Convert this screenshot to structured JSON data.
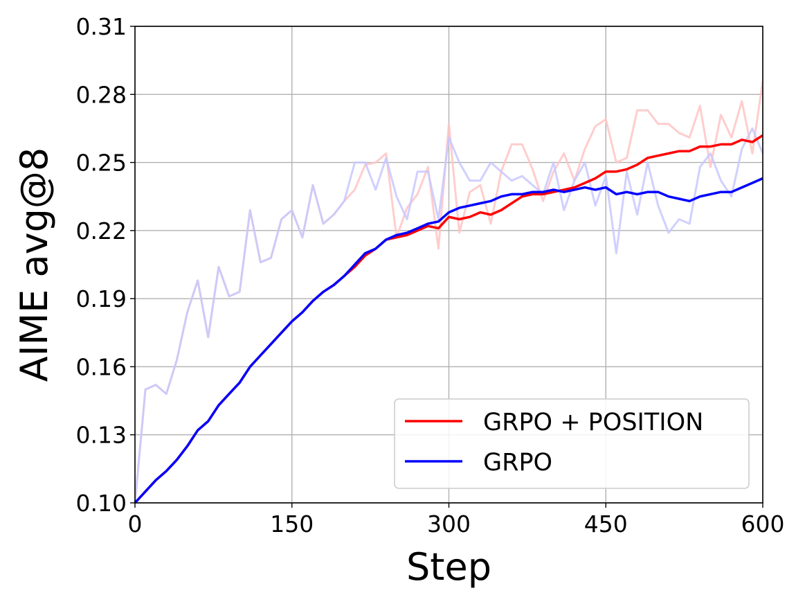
{
  "chart_data": {
    "type": "line",
    "title": "",
    "xlabel": "Step",
    "ylabel": "AIME avg@8",
    "xlim": [
      0,
      600
    ],
    "ylim": [
      0.1,
      0.31
    ],
    "xticks": [
      "0",
      "150",
      "300",
      "450",
      "600"
    ],
    "yticks": [
      "0.10",
      "0.13",
      "0.16",
      "0.19",
      "0.22",
      "0.25",
      "0.28",
      "0.31"
    ],
    "grid": true,
    "legend_position": "lower-right",
    "x": [
      0,
      10,
      20,
      30,
      40,
      50,
      60,
      70,
      80,
      90,
      100,
      110,
      120,
      130,
      140,
      150,
      160,
      170,
      180,
      190,
      200,
      210,
      220,
      230,
      240,
      250,
      260,
      270,
      280,
      290,
      300,
      310,
      320,
      330,
      340,
      350,
      360,
      370,
      380,
      390,
      400,
      410,
      420,
      430,
      440,
      450,
      460,
      470,
      480,
      490,
      500,
      510,
      520,
      530,
      540,
      550,
      560,
      570,
      580,
      590,
      600
    ],
    "raw_series": [
      {
        "name": "GRPO + POSITION raw",
        "color": "#ffc4c4",
        "values": [
          0.1,
          0.15,
          0.152,
          0.148,
          0.163,
          0.184,
          0.198,
          0.173,
          0.204,
          0.191,
          0.193,
          0.229,
          0.206,
          0.208,
          0.225,
          0.229,
          0.217,
          0.24,
          0.223,
          0.227,
          0.233,
          0.238,
          0.249,
          0.25,
          0.254,
          0.217,
          0.23,
          0.236,
          0.248,
          0.212,
          0.267,
          0.219,
          0.237,
          0.24,
          0.223,
          0.246,
          0.258,
          0.258,
          0.247,
          0.233,
          0.246,
          0.254,
          0.242,
          0.256,
          0.266,
          0.269,
          0.25,
          0.252,
          0.273,
          0.273,
          0.267,
          0.267,
          0.263,
          0.261,
          0.275,
          0.248,
          0.271,
          0.261,
          0.277,
          0.254,
          0.286
        ]
      },
      {
        "name": "GRPO raw",
        "color": "#c8c8ff",
        "values": [
          0.1,
          0.15,
          0.152,
          0.148,
          0.163,
          0.184,
          0.198,
          0.173,
          0.204,
          0.191,
          0.193,
          0.229,
          0.206,
          0.208,
          0.225,
          0.229,
          0.217,
          0.24,
          0.223,
          0.227,
          0.233,
          0.25,
          0.25,
          0.238,
          0.252,
          0.235,
          0.225,
          0.246,
          0.246,
          0.225,
          0.261,
          0.25,
          0.242,
          0.242,
          0.25,
          0.246,
          0.242,
          0.244,
          0.24,
          0.236,
          0.25,
          0.229,
          0.242,
          0.25,
          0.231,
          0.244,
          0.21,
          0.246,
          0.227,
          0.25,
          0.231,
          0.219,
          0.225,
          0.223,
          0.248,
          0.254,
          0.242,
          0.235,
          0.256,
          0.265,
          0.254
        ]
      }
    ],
    "series": [
      {
        "name": "GRPO + POSITION",
        "color": "#ff0000",
        "values": [
          0.1,
          0.105,
          0.11,
          0.114,
          0.119,
          0.125,
          0.132,
          0.136,
          0.143,
          0.148,
          0.153,
          0.16,
          0.165,
          0.17,
          0.175,
          0.18,
          0.184,
          0.189,
          0.193,
          0.196,
          0.2,
          0.204,
          0.209,
          0.212,
          0.216,
          0.217,
          0.218,
          0.22,
          0.222,
          0.221,
          0.226,
          0.225,
          0.226,
          0.228,
          0.227,
          0.229,
          0.232,
          0.235,
          0.236,
          0.236,
          0.237,
          0.238,
          0.239,
          0.241,
          0.243,
          0.246,
          0.246,
          0.247,
          0.249,
          0.252,
          0.253,
          0.254,
          0.255,
          0.255,
          0.257,
          0.257,
          0.258,
          0.258,
          0.26,
          0.259,
          0.262
        ]
      },
      {
        "name": "GRPO",
        "color": "#0000ff",
        "values": [
          0.1,
          0.105,
          0.11,
          0.114,
          0.119,
          0.125,
          0.132,
          0.136,
          0.143,
          0.148,
          0.153,
          0.16,
          0.165,
          0.17,
          0.175,
          0.18,
          0.184,
          0.189,
          0.193,
          0.196,
          0.2,
          0.205,
          0.21,
          0.212,
          0.216,
          0.218,
          0.219,
          0.221,
          0.223,
          0.224,
          0.228,
          0.23,
          0.231,
          0.232,
          0.233,
          0.235,
          0.236,
          0.236,
          0.237,
          0.237,
          0.238,
          0.237,
          0.238,
          0.239,
          0.238,
          0.239,
          0.236,
          0.237,
          0.236,
          0.237,
          0.237,
          0.235,
          0.234,
          0.233,
          0.235,
          0.236,
          0.237,
          0.237,
          0.239,
          0.241,
          0.243
        ]
      }
    ]
  }
}
